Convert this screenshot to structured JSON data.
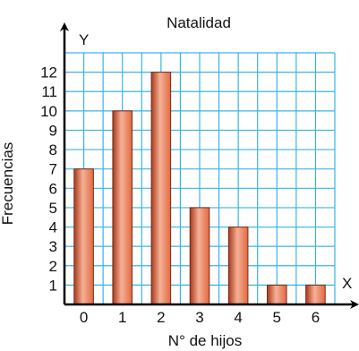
{
  "chart_data": {
    "type": "bar",
    "title": "Natalidad",
    "xlabel": "N° de hijos",
    "ylabel": "Frecuencias",
    "x_axis_letter": "X",
    "y_axis_letter": "Y",
    "categories": [
      "0",
      "1",
      "2",
      "3",
      "4",
      "5",
      "6"
    ],
    "values": [
      7,
      10,
      12,
      5,
      4,
      1,
      1
    ],
    "y_ticks": [
      "1",
      "2",
      "3",
      "4",
      "5",
      "6",
      "7",
      "8",
      "9",
      "10",
      "11",
      "12"
    ],
    "ylim": [
      0,
      13
    ],
    "grid": true,
    "colors": {
      "grid": "#3ab4e6",
      "bar_main": "#e06a42",
      "bar_light": "#f6b196",
      "bar_dark": "#a8391c",
      "bar_border": "#7a2a14",
      "axis": "#000000"
    }
  }
}
